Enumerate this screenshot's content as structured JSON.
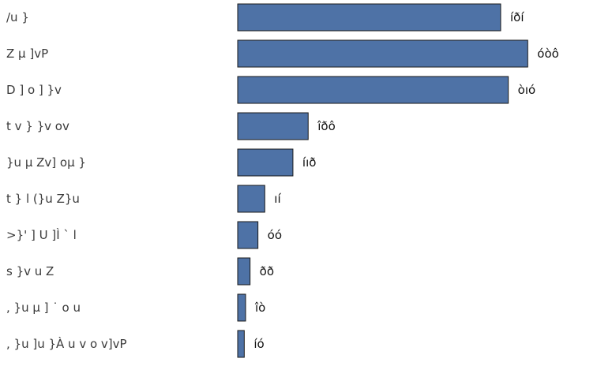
{
  "chart_data": {
    "type": "bar",
    "orientation": "horizontal",
    "categories": [
      "/u }",
      "Z µ ]vP",
      "D ] o ] }v",
      "t v } }v ov",
      "}u µ Zv] oµ }",
      "t } l (}u Z}u",
      ">}' ] U ]Ì ` l",
      "s }v u Z",
      ", }u µ ] ˙ o u",
      ", }u ]u }À u v o v]vP"
    ],
    "values": [
      1000,
      1103,
      1029,
      268,
      210,
      103,
      77,
      47,
      30,
      25
    ],
    "value_labels": [
      "íðí",
      "óòô",
      "òıó",
      "îðô",
      "íıð",
      "ıí",
      "óó",
      "ðð",
      "îò",
      "íó"
    ],
    "bar_color": "#4e72a6",
    "grid": false,
    "legend": "none",
    "title": "",
    "xlabel": "",
    "ylabel": ""
  }
}
